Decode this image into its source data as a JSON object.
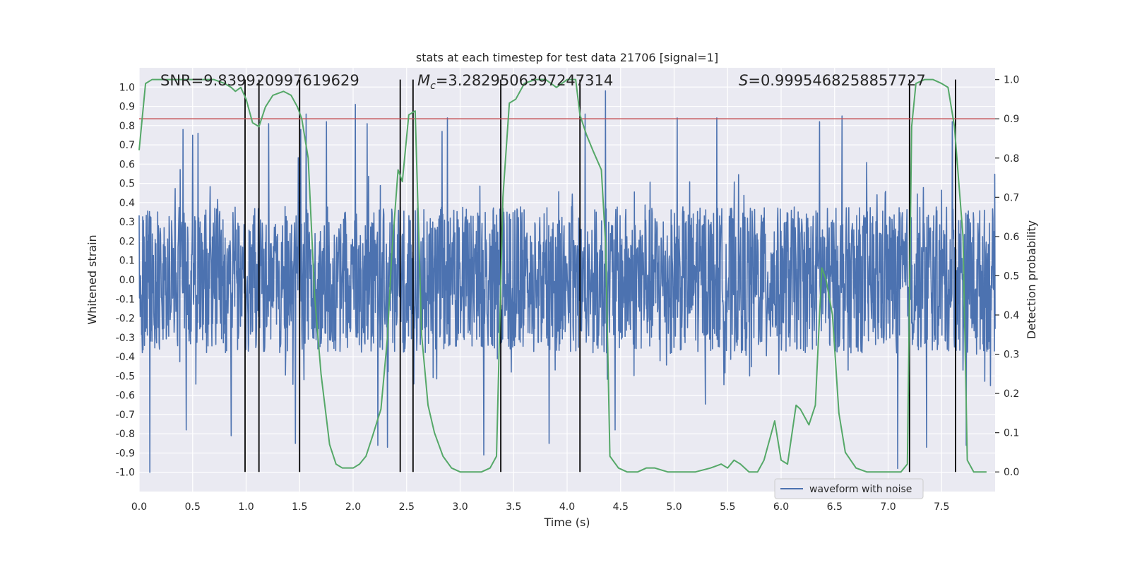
{
  "chart_data": {
    "type": "line",
    "title": "stats at each timestep for test data 21706 [signal=1]",
    "xlabel": "Time (s)",
    "ylabel": "Whitened strain",
    "y2label": "Detection probability",
    "xlim": [
      0.0,
      8.0
    ],
    "ylim": [
      -1.1,
      1.1
    ],
    "y2lim": [
      -0.05,
      1.03
    ],
    "xticks": [
      0.0,
      0.5,
      1.0,
      1.5,
      2.0,
      2.5,
      3.0,
      3.5,
      4.0,
      4.5,
      5.0,
      5.5,
      6.0,
      6.5,
      7.0,
      7.5
    ],
    "xtick_labels": [
      "0.0",
      "0.5",
      "1.0",
      "1.5",
      "2.0",
      "2.5",
      "3.0",
      "3.5",
      "4.0",
      "4.5",
      "5.0",
      "5.5",
      "6.0",
      "6.5",
      "7.0",
      "7.5"
    ],
    "yticks": [
      1.0,
      0.9,
      0.8,
      0.7,
      0.6,
      0.5,
      0.4,
      0.3,
      0.2,
      0.1,
      0.0,
      -0.1,
      -0.2,
      -0.3,
      -0.4,
      -0.5,
      -0.6,
      -0.7,
      -0.8,
      -0.9,
      -1.0
    ],
    "ytick_labels": [
      "1.0",
      "0.9",
      "0.8",
      "0.7",
      "0.6",
      "0.5",
      "0.4",
      "0.3",
      "0.2",
      "0.1",
      "0.0",
      "-0.1",
      "-0.2",
      "-0.3",
      "-0.4",
      "-0.5",
      "-0.6",
      "-0.7",
      "-0.8",
      "-0.9",
      "-1.0"
    ],
    "y2ticks": [
      1.0,
      0.9,
      0.8,
      0.7,
      0.6,
      0.5,
      0.4,
      0.3,
      0.2,
      0.1,
      0.0
    ],
    "y2tick_labels": [
      "1.0",
      "0.9",
      "0.8",
      "0.7",
      "0.6",
      "0.5",
      "0.4",
      "0.3",
      "0.2",
      "0.1",
      "0.0"
    ],
    "annotations": {
      "snr": "SNR=9.839920997619629",
      "mc_symbol": "M",
      "mc_sub": "c",
      "mc_value": "=3.2829506397247314",
      "s_symbol": "S",
      "s_value": "=0.9995468258857727"
    },
    "legend": {
      "label": "waveform with noise",
      "placement": "lower-right"
    },
    "threshold": {
      "value": 0.9,
      "axis": "y2",
      "color": "#c44e52"
    },
    "vertical_lines": [
      0.99,
      1.12,
      1.5,
      2.44,
      2.56,
      3.38,
      4.12,
      7.2,
      7.63
    ],
    "waveform": {
      "name": "waveform with noise",
      "color": "#4c72b0",
      "x_start": 0.0,
      "x_end": 8.0,
      "points": 2400,
      "typical_amplitude": 0.38,
      "max_value": 1.0,
      "min_value": -1.0,
      "peaks": [
        [
          0.41,
          0.78
        ],
        [
          0.5,
          0.75
        ],
        [
          0.55,
          0.76
        ],
        [
          1.21,
          0.81
        ],
        [
          1.51,
          0.78
        ],
        [
          1.56,
          0.86
        ],
        [
          1.75,
          0.82
        ],
        [
          2.02,
          0.91
        ],
        [
          2.13,
          0.81
        ],
        [
          2.83,
          0.77
        ],
        [
          2.88,
          0.84
        ],
        [
          3.22,
          0.85
        ],
        [
          4.17,
          0.86
        ],
        [
          4.36,
          0.98
        ],
        [
          5.03,
          0.84
        ],
        [
          5.4,
          0.84
        ],
        [
          6.36,
          0.82
        ],
        [
          6.57,
          0.85
        ],
        [
          7.6,
          0.82
        ]
      ],
      "troughs": [
        [
          0.1,
          -1.0
        ],
        [
          0.44,
          -0.78
        ],
        [
          0.86,
          -0.81
        ],
        [
          1.46,
          -0.85
        ],
        [
          2.23,
          -0.86
        ],
        [
          2.32,
          -0.87
        ],
        [
          3.22,
          -0.91
        ],
        [
          3.83,
          -0.85
        ],
        [
          4.45,
          -0.78
        ],
        [
          7.09,
          -0.98
        ],
        [
          7.36,
          -0.87
        ],
        [
          7.73,
          -0.86
        ]
      ]
    },
    "series": [
      {
        "name": "Detection probability",
        "axis": "y2",
        "color": "#55a868",
        "x": [
          0.0,
          0.06,
          0.12,
          0.3,
          0.5,
          0.7,
          0.8,
          0.86,
          0.9,
          0.95,
          1.0,
          1.06,
          1.12,
          1.18,
          1.25,
          1.35,
          1.42,
          1.48,
          1.52,
          1.58,
          1.64,
          1.7,
          1.78,
          1.84,
          1.9,
          2.0,
          2.06,
          2.12,
          2.18,
          2.26,
          2.32,
          2.36,
          2.42,
          2.46,
          2.52,
          2.58,
          2.64,
          2.7,
          2.76,
          2.84,
          2.92,
          3.0,
          3.08,
          3.2,
          3.28,
          3.34,
          3.4,
          3.46,
          3.52,
          3.6,
          3.7,
          3.8,
          3.9,
          4.0,
          4.08,
          4.12,
          4.18,
          4.24,
          4.32,
          4.36,
          4.4,
          4.48,
          4.56,
          4.66,
          4.74,
          4.82,
          4.94,
          5.06,
          5.2,
          5.34,
          5.44,
          5.5,
          5.56,
          5.62,
          5.7,
          5.78,
          5.84,
          5.88,
          5.94,
          6.0,
          6.06,
          6.14,
          6.18,
          6.26,
          6.32,
          6.38,
          6.42,
          6.48,
          6.54,
          6.6,
          6.7,
          6.8,
          6.9,
          7.0,
          7.12,
          7.18,
          7.22,
          7.26,
          7.34,
          7.42,
          7.5,
          7.56,
          7.62,
          7.7,
          7.74,
          7.8,
          7.86,
          7.92
        ],
        "values": [
          0.82,
          0.99,
          1.0,
          1.0,
          1.0,
          1.0,
          0.99,
          0.98,
          0.97,
          0.98,
          0.95,
          0.89,
          0.88,
          0.93,
          0.96,
          0.97,
          0.96,
          0.93,
          0.9,
          0.8,
          0.45,
          0.25,
          0.07,
          0.02,
          0.01,
          0.01,
          0.02,
          0.04,
          0.09,
          0.16,
          0.34,
          0.55,
          0.77,
          0.74,
          0.91,
          0.92,
          0.35,
          0.17,
          0.1,
          0.04,
          0.01,
          0.0,
          0.0,
          0.0,
          0.01,
          0.04,
          0.7,
          0.94,
          0.95,
          0.99,
          1.0,
          1.0,
          0.98,
          1.0,
          1.0,
          0.91,
          0.86,
          0.82,
          0.77,
          0.58,
          0.04,
          0.01,
          0.0,
          0.0,
          0.01,
          0.01,
          0.0,
          0.0,
          0.0,
          0.01,
          0.02,
          0.01,
          0.03,
          0.02,
          0.0,
          0.0,
          0.03,
          0.07,
          0.13,
          0.03,
          0.02,
          0.17,
          0.16,
          0.12,
          0.17,
          0.52,
          0.49,
          0.4,
          0.15,
          0.05,
          0.01,
          0.0,
          0.0,
          0.0,
          0.0,
          0.02,
          0.88,
          0.99,
          1.0,
          1.0,
          0.99,
          0.98,
          0.88,
          0.6,
          0.03,
          0.0,
          0.0,
          0.0
        ]
      }
    ]
  }
}
